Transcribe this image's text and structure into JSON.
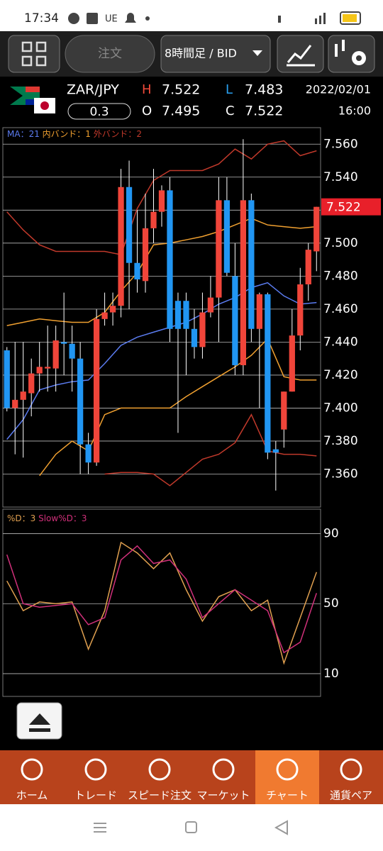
{
  "status_bar": {
    "time": "17:34",
    "carrier": "UE"
  },
  "toolbar": {
    "order": "注文",
    "timeframe": "8時間足 / BID"
  },
  "quote": {
    "pair": "ZAR/JPY",
    "high_label": "H",
    "high": "7.522",
    "low_label": "L",
    "low": "7.483",
    "date": "2022/02/01",
    "spread": "0.3",
    "open_label": "O",
    "open": "7.495",
    "close_label": "C",
    "close": "7.522",
    "time": "16:00"
  },
  "price_chart": {
    "type": "candlestick",
    "legend": [
      {
        "text": "MA：21",
        "color": "#5b7cf0"
      },
      {
        "text": "内バンド：1",
        "color": "#f0a030"
      },
      {
        "text": "外バンド：2",
        "color": "#c0392b"
      }
    ],
    "up_color": "#f0453a",
    "down_color": "#2196f3",
    "xlim": [
      -0.5,
      38.5
    ],
    "ylim": [
      7.34,
      7.57
    ],
    "yticks": [
      {
        "value": 7.36,
        "label": "7.360"
      },
      {
        "value": 7.38,
        "label": "7.380"
      },
      {
        "value": 7.4,
        "label": "7.400"
      },
      {
        "value": 7.42,
        "label": "7.420"
      },
      {
        "value": 7.44,
        "label": "7.440"
      },
      {
        "value": 7.46,
        "label": "7.460"
      },
      {
        "value": 7.48,
        "label": "7.480"
      },
      {
        "value": 7.5,
        "label": "7.500"
      },
      {
        "value": 7.52,
        "label": "7.520"
      },
      {
        "value": 7.54,
        "label": "7.540"
      },
      {
        "value": 7.56,
        "label": "7.560"
      }
    ],
    "grid": true,
    "current_price": {
      "value": 7.522,
      "label": "7.522"
    },
    "open": [
      7.435,
      7.4,
      7.405,
      7.409,
      7.421,
      7.424,
      7.424,
      7.44,
      7.439,
      7.43,
      7.378,
      7.367,
      7.454,
      7.458,
      7.462,
      7.534,
      7.488,
      7.477,
      7.509,
      7.519,
      7.532,
      7.465,
      7.465,
      7.448,
      7.437,
      7.458,
      7.467,
      7.526,
      7.48,
      7.426,
      7.526,
      7.448,
      7.469,
      7.375,
      7.387,
      7.41,
      7.444,
      7.475,
      7.495
    ],
    "high": [
      7.437,
      7.44,
      7.44,
      7.43,
      7.44,
      7.45,
      7.45,
      7.47,
      7.45,
      7.44,
      7.385,
      7.46,
      7.47,
      7.47,
      7.545,
      7.55,
      7.52,
      7.53,
      7.545,
      7.535,
      7.54,
      7.47,
      7.47,
      7.46,
      7.47,
      7.48,
      7.54,
      7.54,
      7.5,
      7.563,
      7.53,
      7.47,
      7.47,
      7.38,
      7.41,
      7.46,
      7.485,
      7.5,
      7.522
    ],
    "low": [
      7.398,
      7.372,
      7.37,
      7.395,
      7.41,
      7.41,
      7.41,
      7.42,
      7.41,
      7.36,
      7.36,
      7.365,
      7.45,
      7.45,
      7.455,
      7.46,
      7.47,
      7.47,
      7.5,
      7.51,
      7.44,
      7.385,
      7.42,
      7.43,
      7.43,
      7.455,
      7.44,
      7.48,
      7.42,
      7.42,
      7.44,
      7.4,
      7.369,
      7.35,
      7.376,
      7.41,
      7.435,
      7.465,
      7.483
    ],
    "close": [
      7.4,
      7.405,
      7.41,
      7.421,
      7.425,
      7.425,
      7.441,
      7.439,
      7.43,
      7.378,
      7.367,
      7.454,
      7.458,
      7.462,
      7.534,
      7.488,
      7.478,
      7.509,
      7.519,
      7.532,
      7.448,
      7.448,
      7.448,
      7.437,
      7.458,
      7.467,
      7.526,
      7.482,
      7.426,
      7.526,
      7.448,
      7.469,
      7.373,
      7.373,
      7.41,
      7.444,
      7.475,
      7.496,
      7.522
    ],
    "overlay_x": [
      0,
      2,
      4,
      6,
      8,
      10,
      12,
      14,
      16,
      18,
      20,
      22,
      24,
      26,
      28,
      30,
      32,
      34,
      36,
      38
    ],
    "overlays": [
      {
        "color": "#5b7cf0",
        "values": [
          7.381,
          7.393,
          7.411,
          7.414,
          7.416,
          7.417,
          7.427,
          7.438,
          7.443,
          7.446,
          7.449,
          7.452,
          7.457,
          7.463,
          7.467,
          7.473,
          7.476,
          7.468,
          7.463,
          7.464
        ]
      },
      {
        "color": "#f0a030",
        "values": [
          7.45,
          7.452,
          7.454,
          7.453,
          7.452,
          7.452,
          7.458,
          7.471,
          7.482,
          7.499,
          7.5,
          7.502,
          7.504,
          7.507,
          7.511,
          7.515,
          7.511,
          7.51,
          7.509,
          7.51
        ]
      },
      {
        "color": "#f0a030",
        "values": [
          null,
          null,
          7.359,
          7.372,
          7.38,
          7.374,
          7.396,
          7.4,
          7.4,
          7.4,
          7.4,
          7.407,
          7.413,
          7.419,
          7.425,
          7.432,
          7.442,
          7.419,
          7.417,
          7.417
        ]
      },
      {
        "color": "#c0392b",
        "values": [
          7.519,
          7.508,
          7.499,
          7.495,
          7.495,
          7.495,
          7.495,
          7.493,
          7.521,
          7.538,
          7.544,
          7.544,
          7.544,
          7.548,
          7.557,
          7.551,
          7.56,
          7.562,
          7.553,
          7.556
        ]
      },
      {
        "color": "#c0392b",
        "values": [
          null,
          null,
          null,
          null,
          null,
          null,
          7.36,
          7.361,
          7.361,
          7.36,
          7.353,
          7.361,
          7.369,
          7.372,
          7.379,
          7.396,
          7.374,
          7.372,
          7.372,
          7.371
        ]
      }
    ]
  },
  "indicator_chart": {
    "type": "line",
    "legend": [
      {
        "text": "%D：3",
        "color": "#e0a050"
      },
      {
        "text": "Slow%D：3",
        "color": "#d0307a"
      }
    ],
    "xlim": [
      -0.5,
      38.5
    ],
    "ylim": [
      -3,
      104
    ],
    "yticks": [
      10,
      50,
      90
    ],
    "grid": true,
    "x": [
      0,
      2,
      4,
      6,
      8,
      10,
      12,
      14,
      16,
      18,
      20,
      22,
      24,
      26,
      28,
      30,
      32,
      34,
      36,
      38
    ],
    "series": [
      {
        "color": "#e0a050",
        "values": [
          63,
          46,
          51,
          50,
          51,
          24,
          46,
          85,
          79,
          70,
          79,
          58,
          40,
          54,
          58,
          46,
          52,
          16,
          42,
          68
        ]
      },
      {
        "color": "#d0307a",
        "values": [
          78,
          50,
          48,
          49,
          50,
          38,
          42,
          75,
          83,
          73,
          75,
          64,
          42,
          50,
          58,
          52,
          46,
          22,
          28,
          56
        ]
      }
    ]
  },
  "nav": {
    "items": [
      "ホーム",
      "トレード",
      "スピード注文",
      "マーケット",
      "チャート",
      "通貨ペア"
    ]
  }
}
